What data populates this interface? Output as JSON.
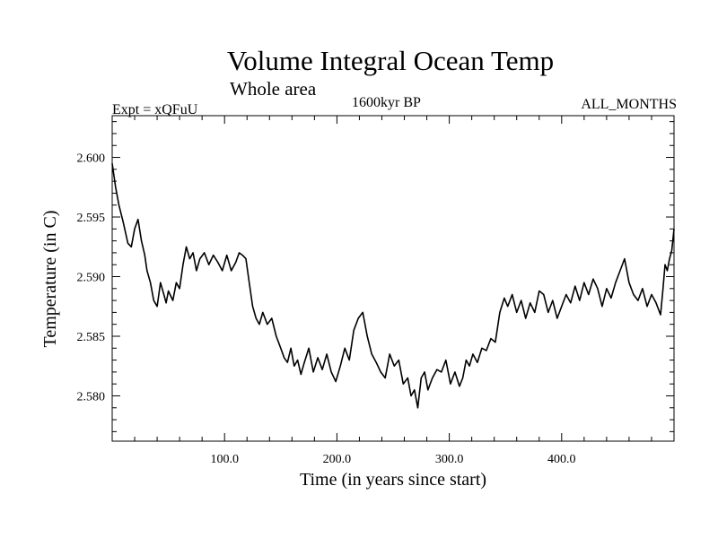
{
  "chart_data": {
    "type": "line",
    "title": "Volume Integral Ocean Temp",
    "subtitle": "Whole area",
    "experiment_label": "Expt = xQFuU",
    "period_label": "1600kyr BP",
    "months_label": "ALL_MONTHS",
    "xlabel": "Time (in years since start)",
    "ylabel": "Temperature (in C)",
    "xlim": [
      0,
      500
    ],
    "ylim": [
      2.5762,
      2.6035
    ],
    "xticks": [
      100,
      200,
      300,
      400
    ],
    "xtick_labels": [
      "100.0",
      "200.0",
      "300.0",
      "400.0"
    ],
    "yticks": [
      2.58,
      2.585,
      2.59,
      2.595,
      2.6
    ],
    "ytick_labels": [
      "2.580",
      "2.585",
      "2.590",
      "2.595",
      "2.600"
    ],
    "grid": false,
    "series": [
      {
        "name": "Volume integral ocean temperature",
        "color": "#000000",
        "x": [
          0,
          3,
          6,
          10,
          14,
          17,
          20,
          23,
          26,
          29,
          31,
          34,
          37,
          40,
          43,
          46,
          48,
          50,
          54,
          57,
          60,
          63,
          66,
          69,
          72,
          75,
          78,
          82,
          86,
          90,
          94,
          98,
          102,
          106,
          110,
          113,
          116,
          119,
          122,
          125,
          128,
          131,
          134,
          138,
          142,
          146,
          150,
          153,
          156,
          159,
          162,
          165,
          168,
          171,
          175,
          179,
          183,
          187,
          191,
          195,
          199,
          203,
          207,
          211,
          215,
          219,
          223,
          227,
          231,
          235,
          239,
          243,
          247,
          251,
          255,
          259,
          263,
          266,
          269,
          272,
          275,
          278,
          281,
          285,
          289,
          293,
          297,
          301,
          305,
          309,
          312,
          315,
          318,
          321,
          325,
          329,
          333,
          337,
          341,
          345,
          349,
          352,
          356,
          360,
          364,
          368,
          372,
          376,
          380,
          384,
          388,
          392,
          396,
          400,
          404,
          408,
          412,
          416,
          420,
          424,
          428,
          432,
          436,
          440,
          444,
          448,
          452,
          456,
          460,
          464,
          468,
          472,
          476,
          480,
          484,
          488,
          490,
          492,
          494,
          496,
          498,
          500
        ],
        "y": [
          2.5995,
          2.5975,
          2.596,
          2.5945,
          2.5928,
          2.5925,
          2.594,
          2.5948,
          2.593,
          2.5918,
          2.5905,
          2.5895,
          2.588,
          2.5875,
          2.5895,
          2.5885,
          2.5878,
          2.5888,
          2.588,
          2.5895,
          2.589,
          2.591,
          2.5925,
          2.5915,
          2.592,
          2.5905,
          2.5915,
          2.592,
          2.591,
          2.5918,
          2.5912,
          2.5905,
          2.5918,
          2.5905,
          2.5912,
          2.592,
          2.5918,
          2.5915,
          2.5895,
          2.5875,
          2.5865,
          2.586,
          2.587,
          2.586,
          2.5865,
          2.585,
          2.584,
          2.5832,
          2.5828,
          2.584,
          2.5825,
          2.583,
          2.5818,
          2.5828,
          2.584,
          2.582,
          2.5832,
          2.5822,
          2.5835,
          2.582,
          2.5812,
          2.5825,
          2.584,
          2.583,
          2.5855,
          2.5865,
          2.587,
          2.585,
          2.5835,
          2.5828,
          2.582,
          2.5815,
          2.5835,
          2.5825,
          2.583,
          2.581,
          2.5815,
          2.58,
          2.5805,
          2.579,
          2.5815,
          2.582,
          2.5805,
          2.5815,
          2.5822,
          2.582,
          2.583,
          2.581,
          2.582,
          2.5808,
          2.5815,
          2.583,
          2.5825,
          2.5835,
          2.5828,
          2.584,
          2.5838,
          2.5848,
          2.5845,
          2.587,
          2.5882,
          2.5875,
          2.5885,
          2.587,
          2.588,
          2.5865,
          2.5878,
          2.587,
          2.5888,
          2.5885,
          2.587,
          2.588,
          2.5865,
          2.5875,
          2.5885,
          2.5878,
          2.5892,
          2.588,
          2.5895,
          2.5885,
          2.5898,
          2.589,
          2.5875,
          2.589,
          2.5882,
          2.5895,
          2.5905,
          2.5915,
          2.5895,
          2.5885,
          2.588,
          2.589,
          2.5875,
          2.5885,
          2.5878,
          2.5868,
          2.5888,
          2.591,
          2.5905,
          2.5915,
          2.5922,
          2.594
        ]
      }
    ]
  }
}
